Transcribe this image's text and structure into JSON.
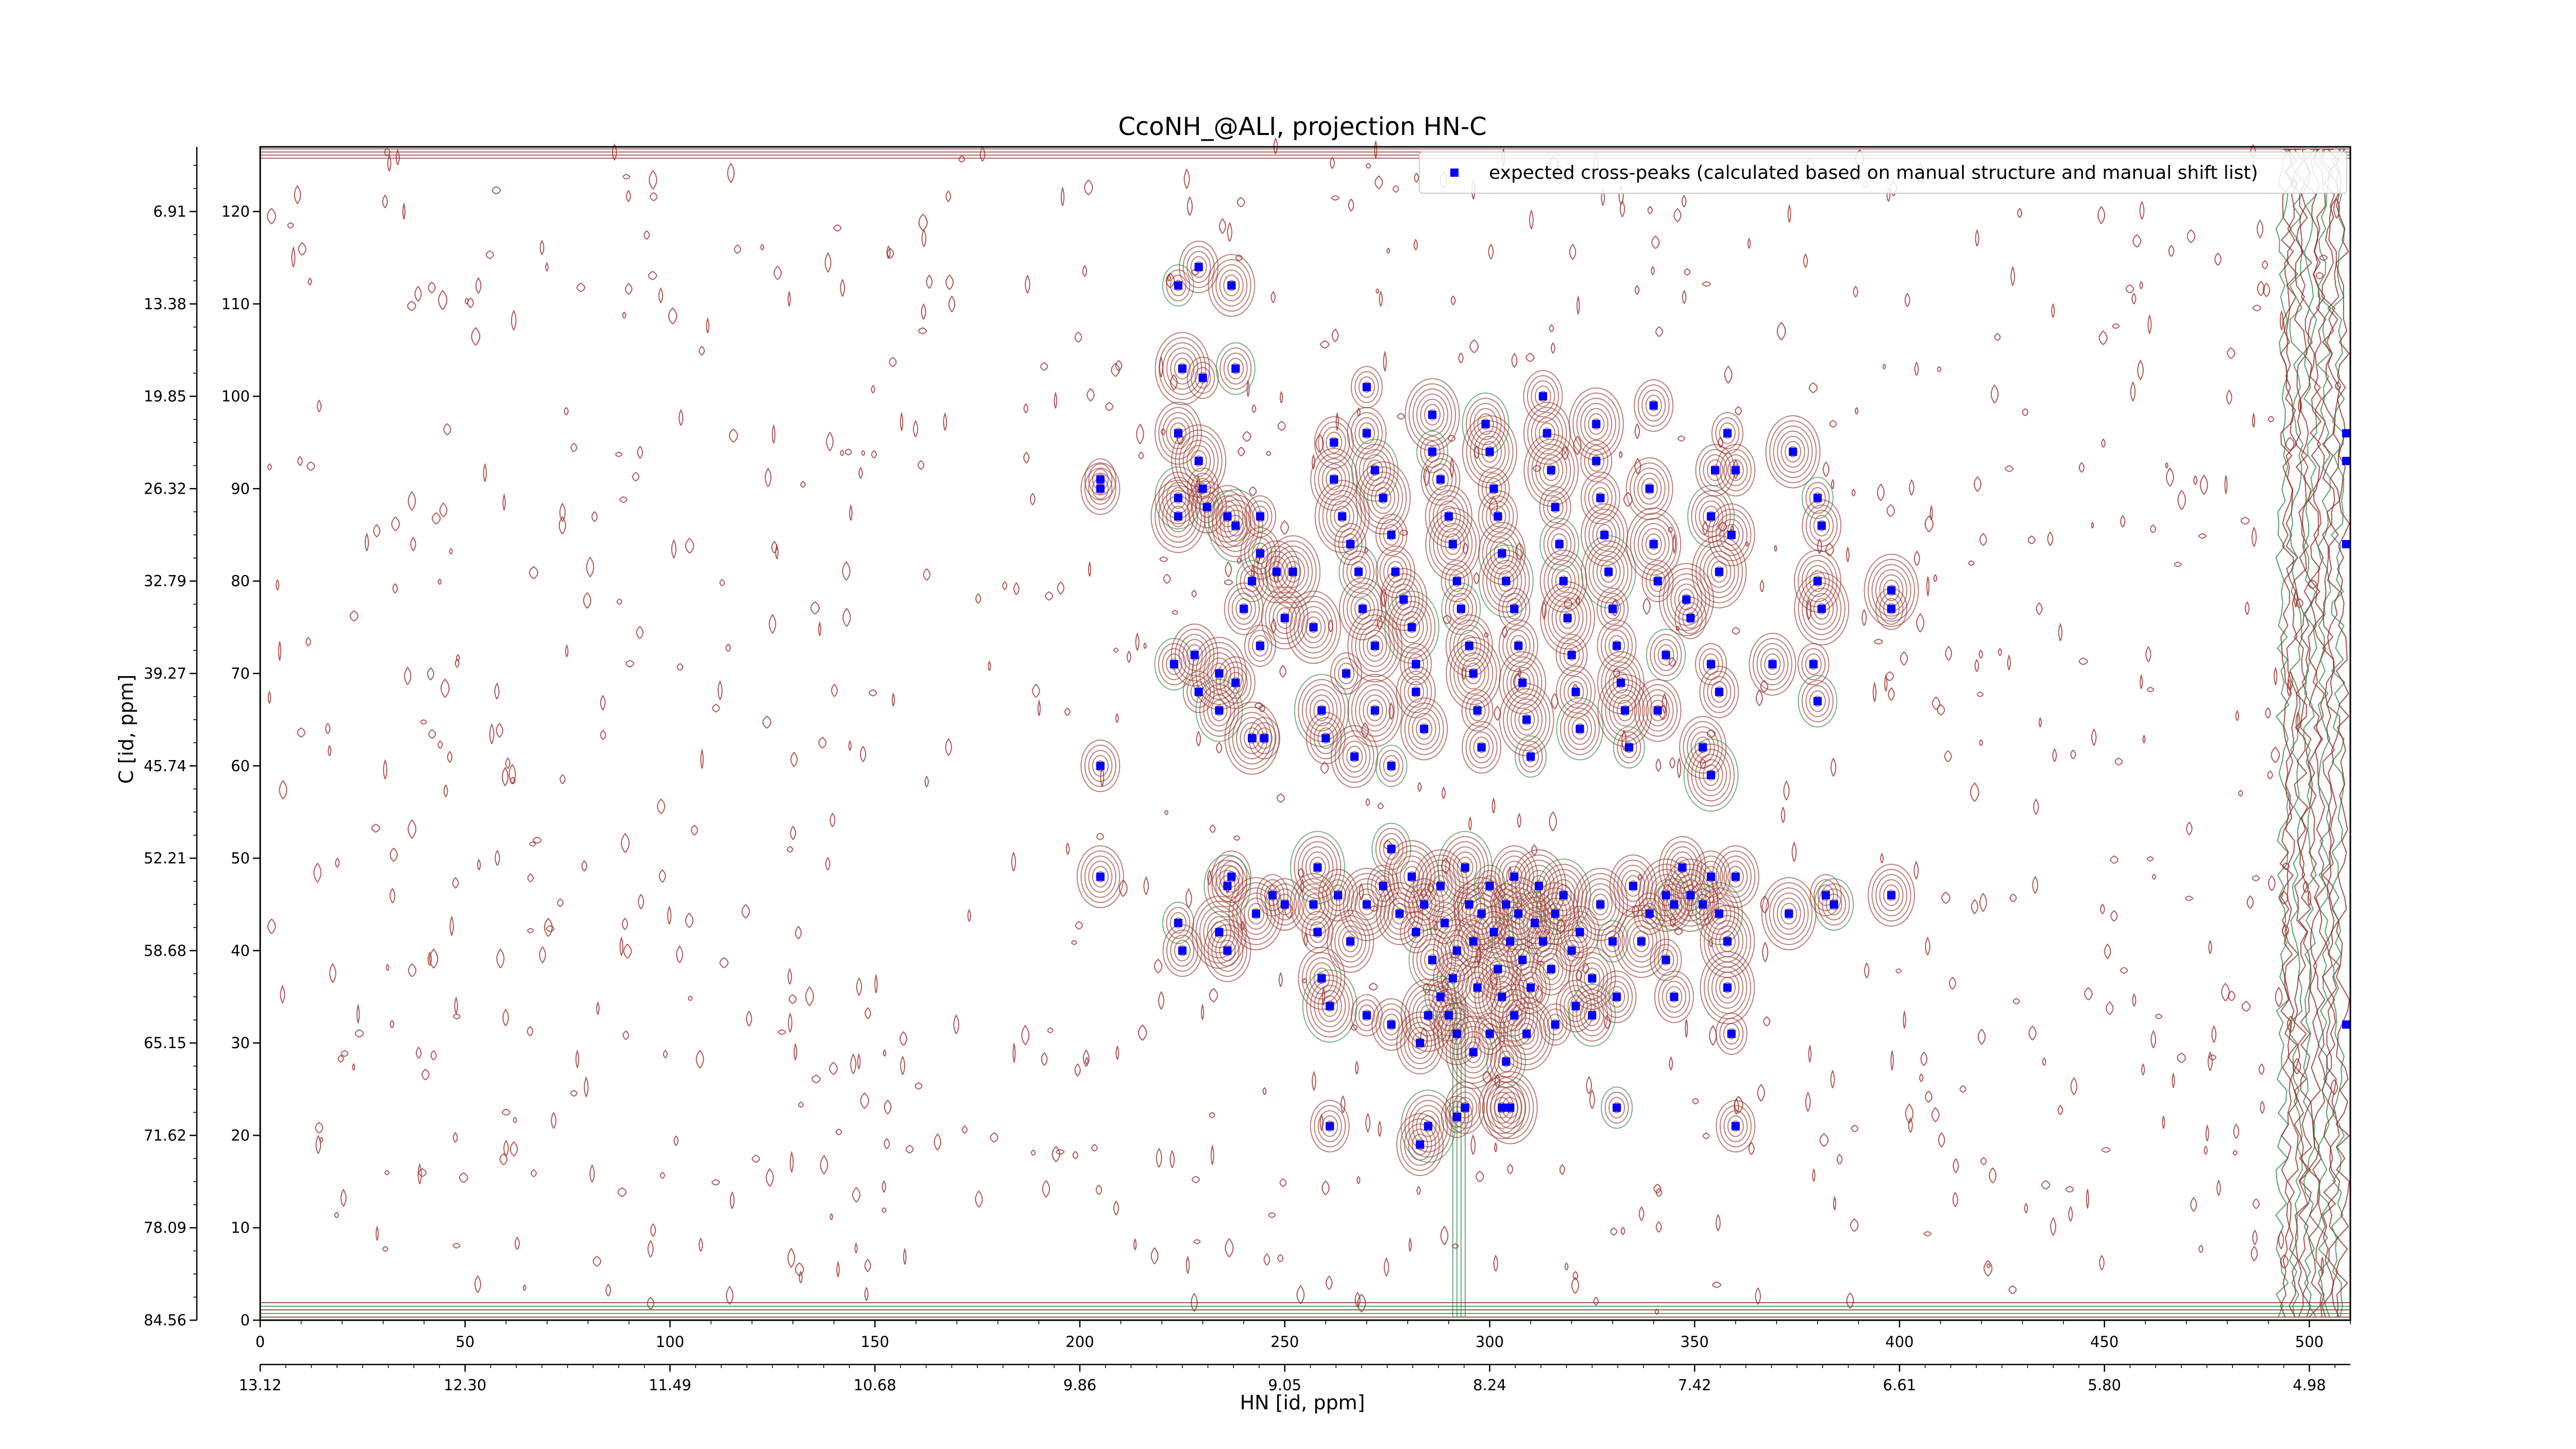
{
  "chart_data": {
    "type": "scatter",
    "title": "CcoNH_@ALI, projection HN-C",
    "xlabel": "HN [id, ppm]",
    "ylabel": "C [id, ppm]",
    "xlim": [
      0,
      510
    ],
    "ylim": [
      0,
      127
    ],
    "x_ticks": [
      0,
      50,
      100,
      150,
      200,
      250,
      300,
      350,
      400,
      450,
      500
    ],
    "y_ticks": [
      0,
      10,
      20,
      30,
      40,
      50,
      60,
      70,
      80,
      90,
      100,
      110,
      120
    ],
    "secondary_x_ticks": [
      "13.12",
      "12.30",
      "11.49",
      "10.68",
      "9.86",
      "9.05",
      "8.24",
      "7.42",
      "6.61",
      "5.80",
      "4.98"
    ],
    "secondary_y_ticks": [
      "84.56",
      "78.09",
      "71.62",
      "65.15",
      "58.68",
      "52.21",
      "45.74",
      "39.27",
      "32.79",
      "26.32",
      "19.85",
      "13.38",
      "6.91"
    ],
    "legend": {
      "position": "top-right",
      "entries": [
        "expected cross-peaks (calculated based on manual structure and manual shift list)"
      ]
    },
    "series": [
      {
        "name": "expected cross-peaks (calculated based on manual structure and manual shift list)",
        "color": "#0000ff",
        "points": [
          [
            224,
            112
          ],
          [
            229,
            114
          ],
          [
            237,
            112
          ],
          [
            225,
            103
          ],
          [
            230,
            102
          ],
          [
            238,
            103
          ],
          [
            224,
            96
          ],
          [
            229,
            93
          ],
          [
            205,
            91
          ],
          [
            205,
            90
          ],
          [
            224,
            89
          ],
          [
            224,
            87
          ],
          [
            230,
            90
          ],
          [
            231,
            88
          ],
          [
            236,
            87
          ],
          [
            238,
            86
          ],
          [
            244,
            87
          ],
          [
            244,
            83
          ],
          [
            248,
            81
          ],
          [
            252,
            81
          ],
          [
            242,
            80
          ],
          [
            240,
            77
          ],
          [
            250,
            76
          ],
          [
            257,
            75
          ],
          [
            244,
            73
          ],
          [
            223,
            71
          ],
          [
            228,
            72
          ],
          [
            234,
            70
          ],
          [
            229,
            68
          ],
          [
            238,
            69
          ],
          [
            234,
            66
          ],
          [
            242,
            63
          ],
          [
            245,
            63
          ],
          [
            205,
            60
          ],
          [
            205,
            48
          ],
          [
            259,
            66
          ],
          [
            265,
            70
          ],
          [
            260,
            63
          ],
          [
            267,
            61
          ],
          [
            272,
            66
          ],
          [
            276,
            60
          ],
          [
            262,
            95
          ],
          [
            262,
            91
          ],
          [
            264,
            87
          ],
          [
            266,
            84
          ],
          [
            268,
            81
          ],
          [
            269,
            77
          ],
          [
            272,
            73
          ],
          [
            270,
            101
          ],
          [
            270,
            96
          ],
          [
            272,
            92
          ],
          [
            274,
            89
          ],
          [
            276,
            85
          ],
          [
            277,
            81
          ],
          [
            279,
            78
          ],
          [
            281,
            75
          ],
          [
            282,
            71
          ],
          [
            282,
            68
          ],
          [
            284,
            64
          ],
          [
            286,
            98
          ],
          [
            286,
            94
          ],
          [
            288,
            91
          ],
          [
            290,
            87
          ],
          [
            291,
            84
          ],
          [
            292,
            80
          ],
          [
            293,
            77
          ],
          [
            295,
            73
          ],
          [
            296,
            70
          ],
          [
            297,
            66
          ],
          [
            298,
            62
          ],
          [
            299,
            97
          ],
          [
            300,
            94
          ],
          [
            301,
            90
          ],
          [
            302,
            87
          ],
          [
            303,
            83
          ],
          [
            304,
            80
          ],
          [
            306,
            77
          ],
          [
            307,
            73
          ],
          [
            308,
            69
          ],
          [
            309,
            65
          ],
          [
            310,
            61
          ],
          [
            313,
            100
          ],
          [
            314,
            96
          ],
          [
            315,
            92
          ],
          [
            316,
            88
          ],
          [
            317,
            84
          ],
          [
            318,
            80
          ],
          [
            319,
            76
          ],
          [
            320,
            72
          ],
          [
            321,
            68
          ],
          [
            322,
            64
          ],
          [
            326,
            97
          ],
          [
            326,
            93
          ],
          [
            327,
            89
          ],
          [
            328,
            85
          ],
          [
            329,
            81
          ],
          [
            330,
            77
          ],
          [
            331,
            73
          ],
          [
            332,
            69
          ],
          [
            333,
            66
          ],
          [
            334,
            62
          ],
          [
            340,
            99
          ],
          [
            339,
            90
          ],
          [
            340,
            84
          ],
          [
            341,
            80
          ],
          [
            343,
            72
          ],
          [
            341,
            66
          ],
          [
            348,
            78
          ],
          [
            349,
            76
          ],
          [
            355,
            92
          ],
          [
            354,
            87
          ],
          [
            356,
            81
          ],
          [
            354,
            71
          ],
          [
            356,
            68
          ],
          [
            352,
            62
          ],
          [
            354,
            59
          ],
          [
            358,
            96
          ],
          [
            360,
            92
          ],
          [
            359,
            85
          ],
          [
            374,
            94
          ],
          [
            380,
            89
          ],
          [
            381,
            86
          ],
          [
            380,
            80
          ],
          [
            381,
            77
          ],
          [
            379,
            71
          ],
          [
            380,
            67
          ],
          [
            369,
            71
          ],
          [
            398,
            79
          ],
          [
            398,
            77
          ],
          [
            237,
            48
          ],
          [
            236,
            47
          ],
          [
            243,
            44
          ],
          [
            247,
            46
          ],
          [
            250,
            45
          ],
          [
            257,
            45
          ],
          [
            258,
            49
          ],
          [
            258,
            42
          ],
          [
            263,
            46
          ],
          [
            266,
            41
          ],
          [
            270,
            45
          ],
          [
            224,
            43
          ],
          [
            225,
            40
          ],
          [
            236,
            40
          ],
          [
            234,
            42
          ],
          [
            274,
            47
          ],
          [
            276,
            51
          ],
          [
            278,
            44
          ],
          [
            281,
            48
          ],
          [
            282,
            42
          ],
          [
            284,
            45
          ],
          [
            286,
            39
          ],
          [
            288,
            47
          ],
          [
            289,
            43
          ],
          [
            291,
            37
          ],
          [
            292,
            40
          ],
          [
            294,
            49
          ],
          [
            295,
            45
          ],
          [
            296,
            41
          ],
          [
            297,
            36
          ],
          [
            298,
            44
          ],
          [
            300,
            47
          ],
          [
            301,
            42
          ],
          [
            302,
            38
          ],
          [
            303,
            35
          ],
          [
            304,
            45
          ],
          [
            305,
            41
          ],
          [
            306,
            48
          ],
          [
            307,
            44
          ],
          [
            308,
            39
          ],
          [
            310,
            36
          ],
          [
            311,
            43
          ],
          [
            312,
            47
          ],
          [
            313,
            41
          ],
          [
            315,
            38
          ],
          [
            316,
            44
          ],
          [
            318,
            46
          ],
          [
            320,
            40
          ],
          [
            322,
            42
          ],
          [
            325,
            37
          ],
          [
            327,
            45
          ],
          [
            330,
            41
          ],
          [
            331,
            35
          ],
          [
            335,
            47
          ],
          [
            337,
            41
          ],
          [
            339,
            44
          ],
          [
            345,
            45
          ],
          [
            347,
            49
          ],
          [
            349,
            46
          ],
          [
            352,
            45
          ],
          [
            354,
            48
          ],
          [
            356,
            44
          ],
          [
            358,
            41
          ],
          [
            343,
            39
          ],
          [
            345,
            35
          ],
          [
            259,
            37
          ],
          [
            261,
            34
          ],
          [
            270,
            33
          ],
          [
            276,
            32
          ],
          [
            283,
            30
          ],
          [
            285,
            33
          ],
          [
            288,
            35
          ],
          [
            290,
            33
          ],
          [
            292,
            31
          ],
          [
            296,
            29
          ],
          [
            300,
            31
          ],
          [
            304,
            28
          ],
          [
            306,
            33
          ],
          [
            309,
            31
          ],
          [
            316,
            32
          ],
          [
            321,
            34
          ],
          [
            325,
            33
          ],
          [
            358,
            36
          ],
          [
            359,
            31
          ],
          [
            261,
            21
          ],
          [
            283,
            19
          ],
          [
            285,
            21
          ],
          [
            292,
            22
          ],
          [
            294,
            23
          ],
          [
            303,
            23
          ],
          [
            305,
            23
          ],
          [
            331,
            23
          ],
          [
            360,
            21
          ],
          [
            360,
            48
          ],
          [
            373,
            44
          ],
          [
            382,
            46
          ],
          [
            384,
            45
          ],
          [
            398,
            46
          ],
          [
            343,
            46
          ],
          [
            509,
            96
          ],
          [
            509,
            93
          ],
          [
            509,
            84
          ],
          [
            509,
            32
          ]
        ]
      }
    ]
  }
}
